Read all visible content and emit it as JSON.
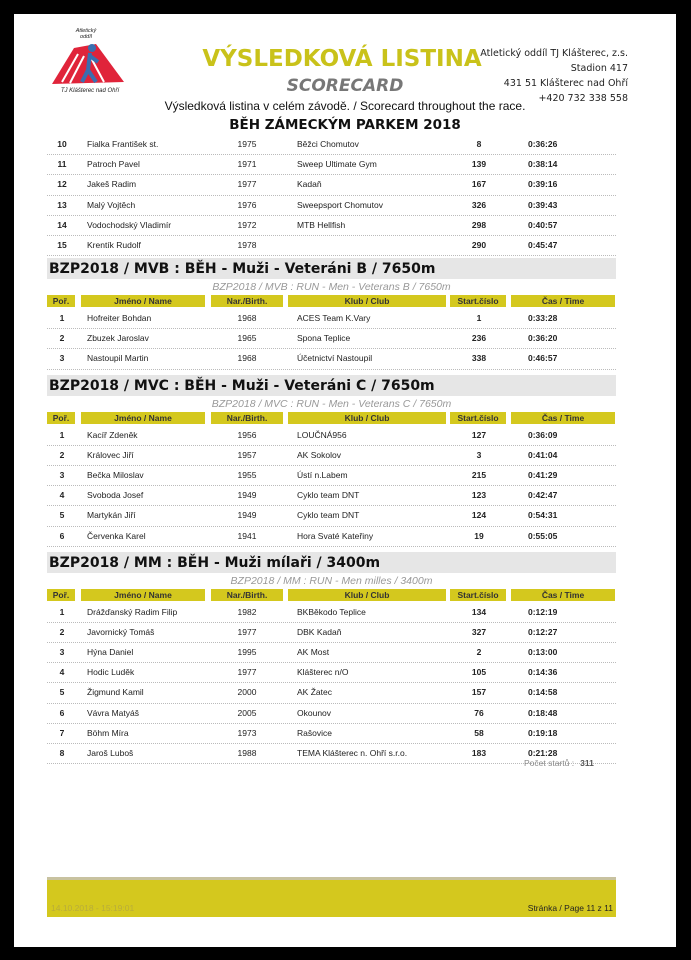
{
  "header": {
    "title": "VÝSLEDKOVÁ LISTINA",
    "subtitle": "SCORECARD",
    "description": "Výsledková listina v celém závodě. / Scorecard throughout the race.",
    "event": "BĚH ZÁMECKÝM PARKEM 2018",
    "logo_text_top": "Atletický oddíl",
    "logo_text_bottom": "TJ Klášterec nad Ohří",
    "address": [
      "Atletický oddíl TJ Klášterec, z.s.",
      "Stadion 417",
      "431 51 Klášterec nad Ohří",
      "+420 732 338 558"
    ]
  },
  "columns": [
    "Poř.",
    "Jméno / Name",
    "Nar./Birth.",
    "Klub / Club",
    "Start.číslo",
    "Čas / Time"
  ],
  "colors": {
    "accent": "#d4c81e",
    "section_bg": "#e6e6e6"
  },
  "continued_rows": [
    [
      "10",
      "Fialka František st.",
      "1975",
      "Běžci Chomutov",
      "8",
      "0:36:26"
    ],
    [
      "11",
      "Patroch Pavel",
      "1971",
      "Sweep Ultimate Gym",
      "139",
      "0:38:14"
    ],
    [
      "12",
      "Jakeš Radim",
      "1977",
      "Kadaň",
      "167",
      "0:39:16"
    ],
    [
      "13",
      "Malý Vojtěch",
      "1976",
      "Sweepsport Chomutov",
      "326",
      "0:39:43"
    ],
    [
      "14",
      "Vodochodský Vladimír",
      "1972",
      "MTB Hellfish",
      "298",
      "0:40:57"
    ],
    [
      "15",
      "Krentík Rudolf",
      "1978",
      "",
      "290",
      "0:45:47"
    ]
  ],
  "sections": [
    {
      "title": "BZP2018 / MVB : BĚH - Muži - Veteráni B / 7650m",
      "subtitle": "BZP2018 / MVB : RUN - Men  - Veterans B / 7650m",
      "rows": [
        [
          "1",
          "Hofreiter Bohdan",
          "1968",
          "ACES Team K.Vary",
          "1",
          "0:33:28"
        ],
        [
          "2",
          "Zbuzek Jaroslav",
          "1965",
          "Spona Teplice",
          "236",
          "0:36:20"
        ],
        [
          "3",
          "Nastoupil Martin",
          "1968",
          "Účetnictví Nastoupil",
          "338",
          "0:46:57"
        ]
      ]
    },
    {
      "title": "BZP2018 / MVC : BĚH - Muži - Veteráni C / 7650m",
      "subtitle": "BZP2018 / MVC : RUN - Men  - Veterans C / 7650m",
      "rows": [
        [
          "1",
          "Kacíř Zdeněk",
          "1956",
          "LOUČNÁ956",
          "127",
          "0:36:09"
        ],
        [
          "2",
          "Královec Jiří",
          "1957",
          "AK Sokolov",
          "3",
          "0:41:04"
        ],
        [
          "3",
          "Bečka Miloslav",
          "1955",
          "Ústí n.Labem",
          "215",
          "0:41:29"
        ],
        [
          "4",
          "Svoboda Josef",
          "1949",
          "Cyklo team DNT",
          "123",
          "0:42:47"
        ],
        [
          "5",
          "Martykán Jiří",
          "1949",
          "Cyklo team DNT",
          "124",
          "0:54:31"
        ],
        [
          "6",
          "Červenka Karel",
          "1941",
          "Hora Svaté Kateřiny",
          "19",
          "0:55:05"
        ]
      ]
    },
    {
      "title": "BZP2018 / MM : BĚH - Muži mílaři / 3400m",
      "subtitle": "BZP2018 / MM : RUN - Men milles / 3400m",
      "rows": [
        [
          "1",
          "Drážďanský Radim Filip",
          "1982",
          "BKBěkodo Teplice",
          "134",
          "0:12:19"
        ],
        [
          "2",
          "Javornický Tomáš",
          "1977",
          "DBK Kadaň",
          "327",
          "0:12:27"
        ],
        [
          "3",
          "Hýna Daniel",
          "1995",
          "AK Most",
          "2",
          "0:13:00"
        ],
        [
          "4",
          "Hodic Luděk",
          "1977",
          "Klášterec n/O",
          "105",
          "0:14:36"
        ],
        [
          "5",
          "Žigmund Kamil",
          "2000",
          "AK Žatec",
          "157",
          "0:14:58"
        ],
        [
          "6",
          "Vávra Matyáš",
          "2005",
          "Okounov",
          "76",
          "0:18:48"
        ],
        [
          "7",
          "Böhm Míra",
          "1973",
          "Rašovice",
          "58",
          "0:19:18"
        ],
        [
          "8",
          "Jaroš Luboš",
          "1988",
          "TEMA Klášterec n. Ohří s.r.o.",
          "183",
          "0:21:28"
        ]
      ]
    }
  ],
  "summary": {
    "label": "Počet startů :",
    "value": "311"
  },
  "footer": {
    "timestamp": "14.10.2018 - 15:19:01",
    "page": "Stránka / Page 11 z 11"
  }
}
